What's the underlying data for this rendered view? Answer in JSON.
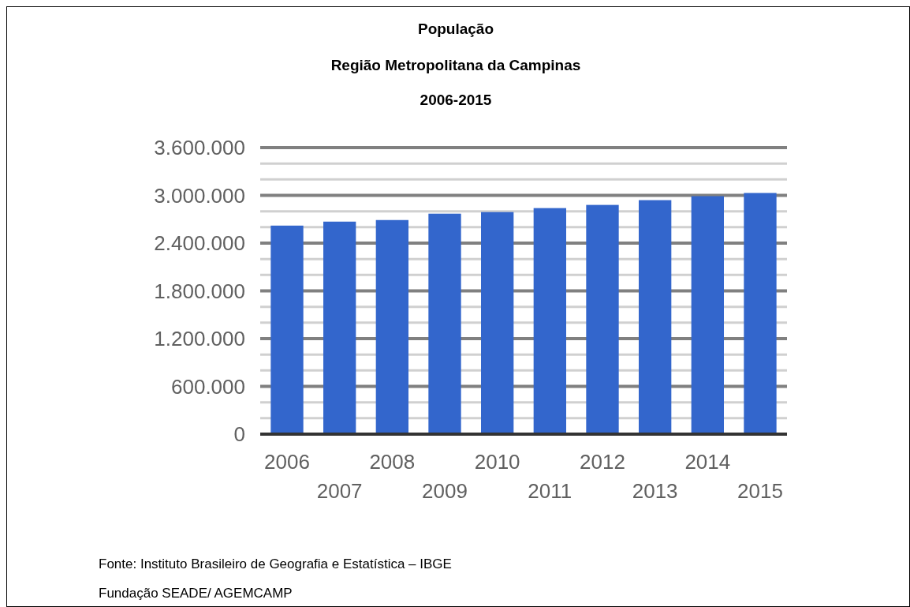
{
  "chart_data": {
    "type": "bar",
    "title": "População",
    "subtitle": "Região Metropolitana da Campinas\n2006-2015",
    "categories": [
      "2006",
      "2007",
      "2008",
      "2009",
      "2010",
      "2011",
      "2012",
      "2013",
      "2014",
      "2015"
    ],
    "values": [
      2620000,
      2670000,
      2690000,
      2770000,
      2790000,
      2840000,
      2880000,
      2940000,
      2990000,
      3030000
    ],
    "color": "#3366cc",
    "ylim": [
      0,
      3600000
    ],
    "yticks": [
      {
        "value": 0,
        "label": "0"
      },
      {
        "value": 200000,
        "label": null
      },
      {
        "value": 400000,
        "label": null
      },
      {
        "value": 600000,
        "label": "600.000"
      },
      {
        "value": 800000,
        "label": null
      },
      {
        "value": 1000000,
        "label": null
      },
      {
        "value": 1200000,
        "label": "1.200.000"
      },
      {
        "value": 1400000,
        "label": null
      },
      {
        "value": 1600000,
        "label": null
      },
      {
        "value": 1800000,
        "label": "1.800.000"
      },
      {
        "value": 2000000,
        "label": null
      },
      {
        "value": 2200000,
        "label": null
      },
      {
        "value": 2400000,
        "label": "2.400.000"
      },
      {
        "value": 2600000,
        "label": null
      },
      {
        "value": 2800000,
        "label": null
      },
      {
        "value": 3000000,
        "label": "3.000.000"
      },
      {
        "value": 3200000,
        "label": null
      },
      {
        "value": 3400000,
        "label": null
      },
      {
        "value": 3600000,
        "label": "3.600.000"
      }
    ],
    "grid": "y",
    "annotations": [
      "Fonte: Instituto Brasileiro de Geografia e Estatística – IBGE",
      "Fundação SEADE/ AGEMCAMP"
    ]
  }
}
